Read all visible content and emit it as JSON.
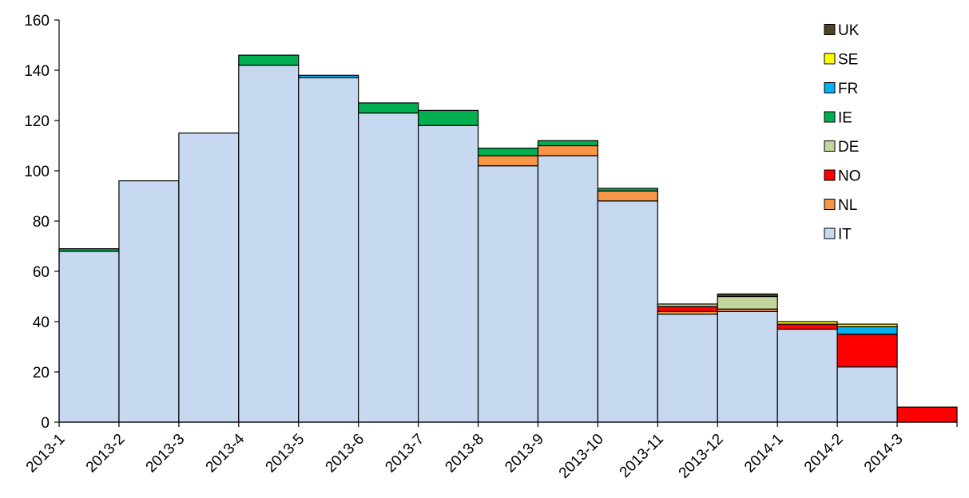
{
  "chart_data": {
    "type": "bar",
    "stacked": true,
    "title": "",
    "xlabel": "",
    "ylabel": "",
    "ylim": [
      0,
      160
    ],
    "yticks": [
      0,
      20,
      40,
      60,
      80,
      100,
      120,
      140,
      160
    ],
    "grid": false,
    "legend_position": "top-right",
    "categories": [
      "2013-1",
      "2013-2",
      "2013-3",
      "2013-4",
      "2013-5",
      "2013-6",
      "2013-7",
      "2013-8",
      "2013-9",
      "2013-10",
      "2013-11",
      "2013-12",
      "2014-1",
      "2014-2",
      "2014-3"
    ],
    "series": [
      {
        "name": "IT",
        "color": "#c6d9f0",
        "values": [
          68,
          96,
          115,
          142,
          137,
          123,
          118,
          102,
          106,
          88,
          43,
          44,
          37,
          22,
          0
        ]
      },
      {
        "name": "NL",
        "color": "#f79646",
        "values": [
          0,
          0,
          0,
          0,
          0,
          0,
          0,
          4,
          4,
          4,
          1,
          1,
          0,
          0,
          0
        ]
      },
      {
        "name": "NO",
        "color": "#ff0000",
        "values": [
          0,
          0,
          0,
          0,
          0,
          0,
          0,
          0,
          0,
          0,
          2,
          0,
          2,
          13,
          6
        ]
      },
      {
        "name": "DE",
        "color": "#c3d69b",
        "values": [
          0,
          0,
          0,
          0,
          0,
          0,
          0,
          0,
          0,
          0,
          1,
          5,
          0,
          0,
          0
        ]
      },
      {
        "name": "IE",
        "color": "#00b050",
        "values": [
          1,
          0,
          0,
          4,
          0,
          4,
          6,
          3,
          2,
          1,
          0,
          0,
          0,
          0,
          0
        ]
      },
      {
        "name": "FR",
        "color": "#00b0f0",
        "values": [
          0,
          0,
          0,
          0,
          1,
          0,
          0,
          0,
          0,
          0,
          0,
          0,
          0,
          3,
          0
        ]
      },
      {
        "name": "SE",
        "color": "#ffff00",
        "values": [
          0,
          0,
          0,
          0,
          0,
          0,
          0,
          0,
          0,
          0,
          0,
          0,
          1,
          1,
          0
        ]
      },
      {
        "name": "UK",
        "color": "#4f4328",
        "values": [
          0,
          0,
          0,
          0,
          0,
          0,
          0,
          0,
          0,
          0,
          0,
          1,
          0,
          0,
          0
        ]
      }
    ],
    "legend_order": [
      "UK",
      "SE",
      "FR",
      "IE",
      "DE",
      "NO",
      "NL",
      "IT"
    ]
  }
}
